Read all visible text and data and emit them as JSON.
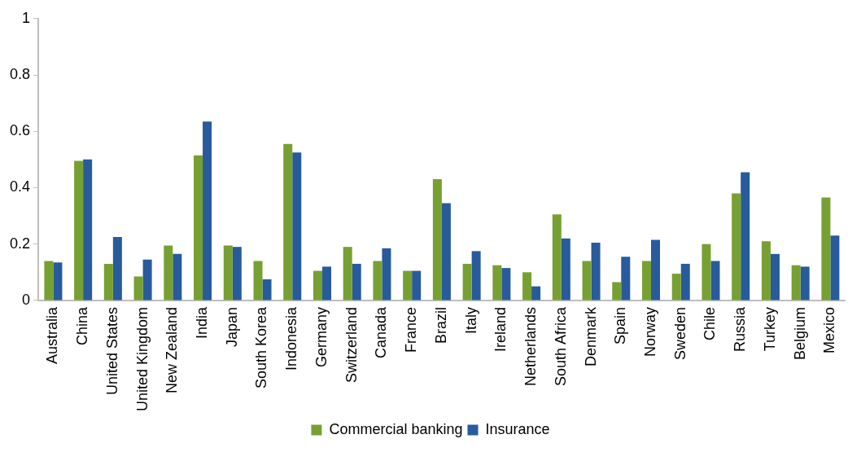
{
  "chart_data": {
    "type": "bar",
    "categories": [
      "Australia",
      "China",
      "United States",
      "United Kingdom",
      "New Zealand",
      "India",
      "Japan",
      "South Korea",
      "Indonesia",
      "Germany",
      "Switzerland",
      "Canada",
      "France",
      "Brazil",
      "Italy",
      "Ireland",
      "Netherlands",
      "South Africa",
      "Denmark",
      "Spain",
      "Norway",
      "Sweden",
      "Chile",
      "Russia",
      "Turkey",
      "Belgium",
      "Mexico"
    ],
    "series": [
      {
        "name": "Commercial banking",
        "color": "#77a033",
        "values": [
          0.14,
          0.495,
          0.13,
          0.085,
          0.195,
          0.515,
          0.195,
          0.14,
          0.555,
          0.105,
          0.19,
          0.14,
          0.105,
          0.43,
          0.13,
          0.125,
          0.1,
          0.305,
          0.14,
          0.065,
          0.14,
          0.095,
          0.2,
          0.38,
          0.21,
          0.125,
          0.365
        ]
      },
      {
        "name": "Insurance",
        "color": "#275b9b",
        "values": [
          0.135,
          0.5,
          0.225,
          0.145,
          0.165,
          0.635,
          0.19,
          0.075,
          0.525,
          0.12,
          0.13,
          0.185,
          0.105,
          0.345,
          0.175,
          0.115,
          0.05,
          0.22,
          0.205,
          0.155,
          0.215,
          0.13,
          0.14,
          0.455,
          0.165,
          0.12,
          0.23
        ]
      }
    ],
    "ylim": [
      0,
      1
    ],
    "yticks": [
      0,
      0.2,
      0.4,
      0.6,
      0.8,
      1
    ],
    "grid": false,
    "legend": "bottom"
  }
}
